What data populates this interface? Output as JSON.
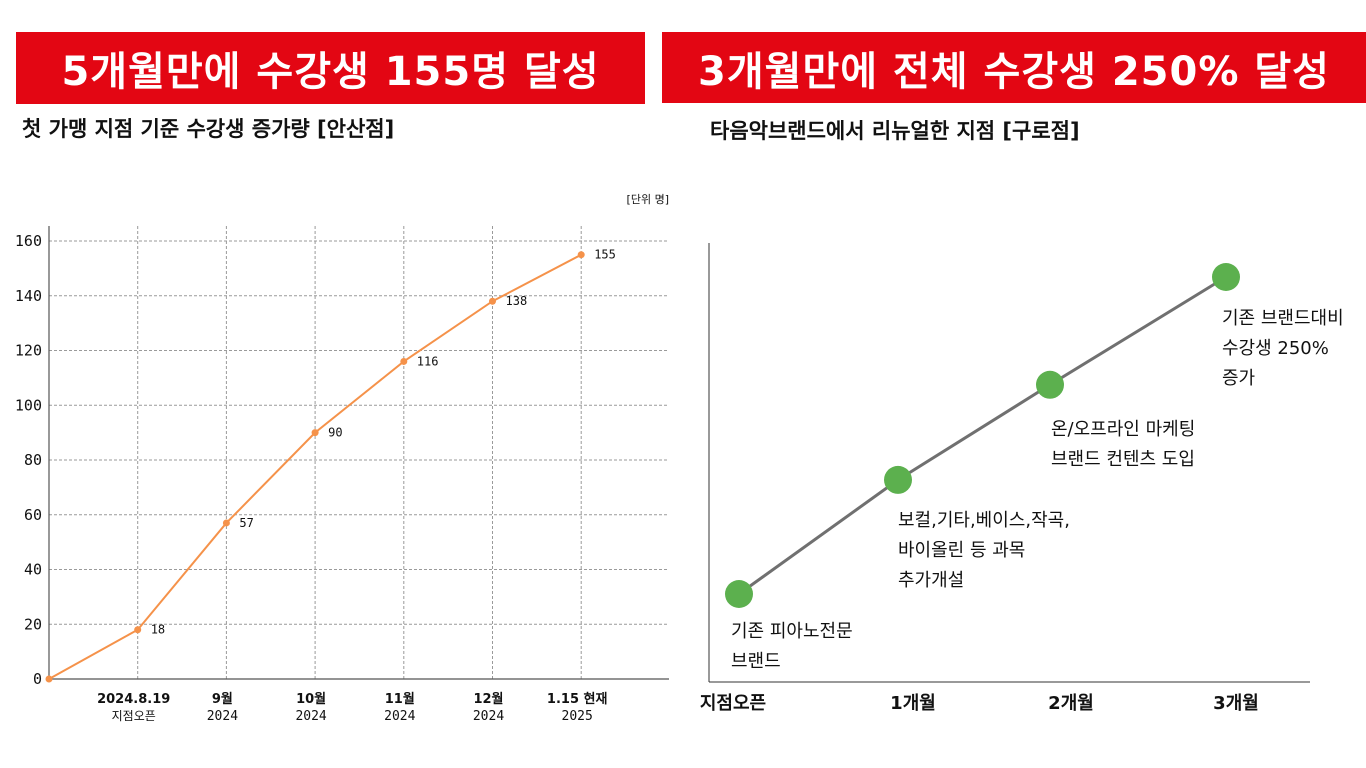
{
  "left": {
    "banner": "5개월만에 수강생 155명 달성",
    "subtitle": "첫 가맹 지점 기준 수강생 증가량 [안산점]"
  },
  "right": {
    "banner": "3개월만에 전체 수강생 250% 달성",
    "subtitle": "타음악브랜드에서 리뉴얼한 지점 [구로점]"
  },
  "colors": {
    "banner_bg": "#e30613",
    "line_orange": "#f5924a",
    "dot_green": "#5cb04e",
    "line_gray": "#707070"
  },
  "chart_data": [
    {
      "type": "line",
      "unit_label": "[단위 명]",
      "ylim": [
        0,
        160
      ],
      "yticks": [
        "0",
        "20",
        "40",
        "60",
        "80",
        "100",
        "120",
        "140",
        "160"
      ],
      "grid": true,
      "categories": [
        {
          "top": "",
          "bottom": ""
        },
        {
          "top": "2024.8.19",
          "bottom": "지점오픈"
        },
        {
          "top": "9월",
          "bottom": "2024"
        },
        {
          "top": "10월",
          "bottom": "2024"
        },
        {
          "top": "11월",
          "bottom": "2024"
        },
        {
          "top": "12월",
          "bottom": "2024"
        },
        {
          "top": "1.15 현재",
          "bottom": "2025"
        }
      ],
      "values": [
        0,
        18,
        57,
        90,
        116,
        138,
        155
      ],
      "data_labels": [
        "",
        "18",
        "57",
        "90",
        "116",
        "138",
        "155"
      ]
    },
    {
      "type": "line",
      "categories": [
        "지점오픈",
        "1개월",
        "2개월",
        "3개월"
      ],
      "relative_levels": [
        0,
        0.36,
        0.66,
        1.0
      ],
      "annotations": [
        [
          "기존 피아노전문",
          "브랜드"
        ],
        [
          "보컬,기타,베이스,작곡,",
          "바이올린 등 과목",
          "추가개설"
        ],
        [
          "온/오프라인 마케팅",
          "브랜드 컨텐츠 도입"
        ],
        [
          "기존 브랜드대비",
          "수강생 250%",
          "증가"
        ]
      ]
    }
  ]
}
